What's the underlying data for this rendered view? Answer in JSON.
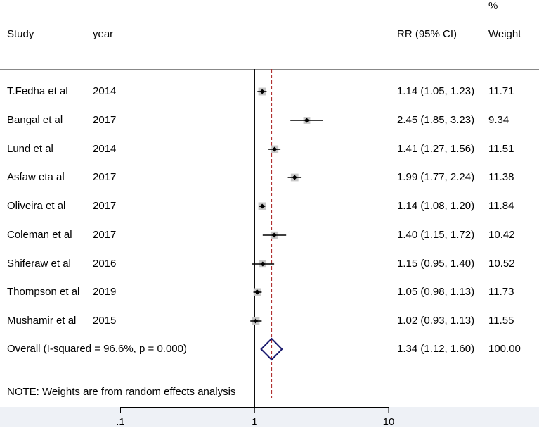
{
  "header": {
    "study": "Study",
    "year": "year",
    "rr": "RR (95% CI)",
    "pct": "%",
    "weight": "Weight"
  },
  "chart_data": {
    "type": "forest",
    "xscale": "log",
    "xlim": [
      0.1,
      10
    ],
    "null_line": 1,
    "overall_line": 1.34,
    "studies": [
      {
        "study": "T.Fedha et al",
        "year": "2014",
        "rr": 1.14,
        "lo": 1.05,
        "hi": 1.23,
        "ci_text": "1.14 (1.05, 1.23)",
        "weight": "11.71"
      },
      {
        "study": "Bangal et al",
        "year": "2017",
        "rr": 2.45,
        "lo": 1.85,
        "hi": 3.23,
        "ci_text": "2.45 (1.85, 3.23)",
        "weight": "9.34"
      },
      {
        "study": "Lund et al",
        "year": "2014",
        "rr": 1.41,
        "lo": 1.27,
        "hi": 1.56,
        "ci_text": "1.41 (1.27, 1.56)",
        "weight": "11.51"
      },
      {
        "study": "Asfaw eta al",
        "year": "2017",
        "rr": 1.99,
        "lo": 1.77,
        "hi": 2.24,
        "ci_text": "1.99 (1.77, 2.24)",
        "weight": "11.38"
      },
      {
        "study": "Oliveira et al",
        "year": "2017",
        "rr": 1.14,
        "lo": 1.08,
        "hi": 1.2,
        "ci_text": "1.14 (1.08, 1.20)",
        "weight": "11.84"
      },
      {
        "study": "Coleman et al",
        "year": "2017",
        "rr": 1.4,
        "lo": 1.15,
        "hi": 1.72,
        "ci_text": "1.40 (1.15, 1.72)",
        "weight": "10.42"
      },
      {
        "study": "Shiferaw et al",
        "year": "2016",
        "rr": 1.15,
        "lo": 0.95,
        "hi": 1.4,
        "ci_text": "1.15 (0.95, 1.40)",
        "weight": "10.52"
      },
      {
        "study": "Thompson et al",
        "year": "2019",
        "rr": 1.05,
        "lo": 0.98,
        "hi": 1.13,
        "ci_text": "1.05 (0.98, 1.13)",
        "weight": "11.73"
      },
      {
        "study": "Mushamir  et al",
        "year": "2015",
        "rr": 1.02,
        "lo": 0.93,
        "hi": 1.13,
        "ci_text": "1.02 (0.93, 1.13)",
        "weight": "11.55"
      }
    ],
    "overall": {
      "label": "Overall  (I-squared = 96.6%, p = 0.000)",
      "rr": 1.34,
      "lo": 1.12,
      "hi": 1.6,
      "ci_text": "1.34 (1.12, 1.60)",
      "weight": "100.00"
    },
    "note": "NOTE: Weights are from random effects analysis",
    "ticks": [
      {
        "value": 0.1,
        "label": ".1"
      },
      {
        "value": 1,
        "label": "1"
      },
      {
        "value": 10,
        "label": "10"
      }
    ],
    "colors": {
      "marker": "#000000",
      "weight_box": "#c8c8c8",
      "overall_line": "#b03030",
      "diamond": "#1a1a6e",
      "axis_band": "#eef1f6"
    }
  }
}
